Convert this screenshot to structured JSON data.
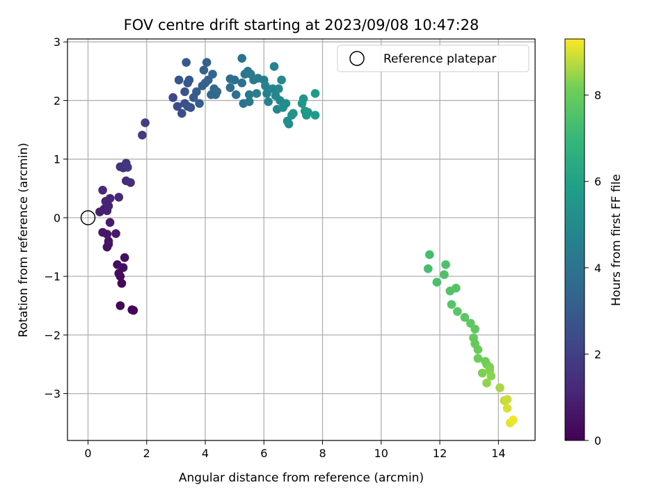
{
  "chart_data": {
    "type": "scatter",
    "title": "FOV centre drift starting at 2023/09/08 10:47:28",
    "xlabel": "Angular distance from reference (arcmin)",
    "ylabel": "Rotation from reference (arcmin)",
    "colorbar_label": "Hours from first FF file",
    "xlim": [
      -0.7,
      15.25
    ],
    "ylim": [
      -3.8,
      3.05
    ],
    "xticks": [
      "0",
      "2",
      "4",
      "6",
      "8",
      "10",
      "12",
      "14"
    ],
    "yticks": [
      "−3",
      "−2",
      "−1",
      "0",
      "1",
      "2",
      "3"
    ],
    "colorbar_ticks": [
      "0",
      "2",
      "4",
      "6",
      "8"
    ],
    "clim": [
      0,
      9.3
    ],
    "colormap": "viridis",
    "grid": true,
    "legend_position": "top-right",
    "reference": {
      "name": "Reference platepar",
      "x": 0,
      "y": 0
    },
    "points": [
      [
        1.55,
        -1.58,
        0.05
      ],
      [
        1.5,
        -1.57,
        0.1
      ],
      [
        1.1,
        -1.5,
        0.15
      ],
      [
        1.15,
        -1.12,
        0.2
      ],
      [
        1.1,
        -1.0,
        0.25
      ],
      [
        1.05,
        -0.95,
        0.3
      ],
      [
        1.2,
        -0.85,
        0.35
      ],
      [
        1.0,
        -0.8,
        0.4
      ],
      [
        1.25,
        -0.68,
        0.45
      ],
      [
        0.65,
        -0.5,
        0.5
      ],
      [
        0.7,
        -0.45,
        0.55
      ],
      [
        0.7,
        -0.4,
        0.6
      ],
      [
        0.5,
        -0.25,
        0.65
      ],
      [
        0.65,
        -0.28,
        0.7
      ],
      [
        0.95,
        -0.27,
        0.75
      ],
      [
        0.75,
        -0.08,
        0.8
      ],
      [
        0.4,
        0.1,
        0.85
      ],
      [
        0.55,
        0.15,
        0.9
      ],
      [
        0.65,
        0.12,
        0.95
      ],
      [
        0.7,
        0.2,
        1.0
      ],
      [
        0.6,
        0.28,
        1.05
      ],
      [
        0.75,
        0.33,
        1.1
      ],
      [
        0.5,
        0.47,
        1.15
      ],
      [
        1.05,
        0.35,
        1.2
      ],
      [
        1.3,
        0.63,
        1.3
      ],
      [
        1.45,
        0.6,
        1.4
      ],
      [
        1.1,
        0.87,
        1.5
      ],
      [
        1.2,
        0.85,
        1.55
      ],
      [
        1.3,
        0.93,
        1.6
      ],
      [
        1.35,
        0.86,
        1.7
      ],
      [
        1.85,
        1.41,
        1.9
      ],
      [
        1.95,
        1.62,
        2.0
      ],
      [
        2.9,
        2.05,
        2.3
      ],
      [
        3.05,
        1.9,
        2.4
      ],
      [
        3.2,
        1.78,
        2.5
      ],
      [
        3.3,
        1.95,
        2.6
      ],
      [
        3.4,
        1.9,
        2.65
      ],
      [
        3.5,
        1.88,
        2.7
      ],
      [
        3.3,
        2.15,
        2.75
      ],
      [
        3.1,
        2.35,
        2.8
      ],
      [
        3.4,
        2.3,
        2.85
      ],
      [
        3.45,
        2.35,
        2.9
      ],
      [
        3.35,
        2.65,
        2.95
      ],
      [
        3.6,
        2.05,
        3.0
      ],
      [
        3.7,
        2.15,
        3.05
      ],
      [
        3.8,
        1.95,
        3.1
      ],
      [
        3.9,
        2.25,
        3.15
      ],
      [
        4.0,
        2.3,
        3.2
      ],
      [
        3.95,
        2.52,
        3.25
      ],
      [
        4.05,
        2.65,
        3.3
      ],
      [
        4.1,
        2.35,
        3.35
      ],
      [
        4.2,
        2.1,
        3.4
      ],
      [
        4.25,
        2.45,
        3.45
      ],
      [
        4.3,
        2.2,
        3.5
      ],
      [
        4.35,
        2.1,
        3.55
      ],
      [
        4.4,
        2.15,
        3.6
      ],
      [
        4.85,
        2.22,
        3.7
      ],
      [
        4.85,
        2.37,
        3.75
      ],
      [
        5.0,
        2.35,
        3.8
      ],
      [
        5.05,
        2.1,
        3.85
      ],
      [
        5.25,
        2.3,
        3.9
      ],
      [
        5.3,
        1.95,
        3.95
      ],
      [
        5.25,
        2.72,
        4.0
      ],
      [
        5.35,
        2.45,
        4.05
      ],
      [
        5.45,
        2.5,
        4.1
      ],
      [
        5.5,
        2.1,
        4.15
      ],
      [
        5.5,
        1.98,
        4.2
      ],
      [
        5.55,
        2.45,
        4.25
      ],
      [
        5.65,
        2.35,
        4.3
      ],
      [
        5.8,
        2.38,
        4.4
      ],
      [
        5.75,
        2.12,
        4.45
      ],
      [
        6.0,
        2.35,
        4.5
      ],
      [
        6.05,
        2.25,
        4.55
      ],
      [
        6.1,
        2.12,
        4.6
      ],
      [
        6.15,
        1.98,
        4.65
      ],
      [
        6.35,
        2.58,
        4.7
      ],
      [
        6.3,
        2.2,
        4.75
      ],
      [
        6.4,
        2.08,
        4.8
      ],
      [
        6.45,
        1.85,
        4.85
      ],
      [
        6.5,
        2.2,
        4.9
      ],
      [
        6.55,
        2.0,
        4.95
      ],
      [
        6.6,
        2.35,
        5.0
      ],
      [
        6.65,
        1.88,
        5.05
      ],
      [
        6.75,
        1.95,
        5.1
      ],
      [
        6.8,
        1.65,
        5.15
      ],
      [
        6.85,
        1.6,
        5.2
      ],
      [
        6.95,
        1.75,
        5.25
      ],
      [
        7.0,
        1.78,
        5.3
      ],
      [
        7.3,
        1.95,
        5.4
      ],
      [
        7.35,
        2.03,
        5.45
      ],
      [
        7.4,
        1.82,
        5.5
      ],
      [
        7.45,
        1.75,
        5.55
      ],
      [
        7.5,
        1.8,
        5.6
      ],
      [
        7.75,
        1.75,
        5.7
      ],
      [
        7.75,
        2.12,
        5.75
      ],
      [
        11.65,
        -0.63,
        7.3
      ],
      [
        11.6,
        -0.87,
        7.35
      ],
      [
        11.9,
        -1.1,
        7.4
      ],
      [
        12.2,
        -0.8,
        7.45
      ],
      [
        12.15,
        -0.97,
        7.5
      ],
      [
        12.35,
        -1.25,
        7.55
      ],
      [
        12.55,
        -1.2,
        7.6
      ],
      [
        12.4,
        -1.48,
        7.65
      ],
      [
        12.6,
        -1.6,
        7.7
      ],
      [
        12.85,
        -1.7,
        7.75
      ],
      [
        13.05,
        -1.8,
        7.8
      ],
      [
        13.2,
        -1.9,
        7.85
      ],
      [
        13.15,
        -2.05,
        7.9
      ],
      [
        13.2,
        -2.15,
        7.95
      ],
      [
        13.3,
        -2.25,
        8.0
      ],
      [
        13.3,
        -2.4,
        8.05
      ],
      [
        13.55,
        -2.45,
        8.1
      ],
      [
        13.6,
        -2.5,
        8.15
      ],
      [
        13.7,
        -2.55,
        8.2
      ],
      [
        13.45,
        -2.65,
        8.25
      ],
      [
        13.7,
        -2.6,
        8.3
      ],
      [
        13.75,
        -2.7,
        8.35
      ],
      [
        13.6,
        -2.82,
        8.4
      ],
      [
        14.05,
        -2.9,
        8.6
      ],
      [
        14.2,
        -3.12,
        8.8
      ],
      [
        14.3,
        -3.1,
        8.9
      ],
      [
        14.3,
        -3.25,
        9.0
      ],
      [
        14.4,
        -3.5,
        9.1
      ],
      [
        14.5,
        -3.45,
        9.2
      ]
    ]
  }
}
